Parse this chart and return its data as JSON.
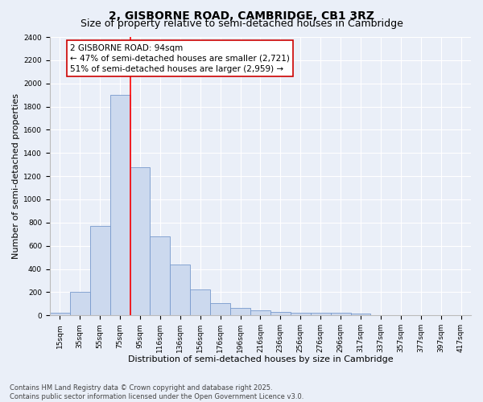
{
  "title": "2, GISBORNE ROAD, CAMBRIDGE, CB1 3RZ",
  "subtitle": "Size of property relative to semi-detached houses in Cambridge",
  "xlabel": "Distribution of semi-detached houses by size in Cambridge",
  "ylabel": "Number of semi-detached properties",
  "bar_labels": [
    "15sqm",
    "35sqm",
    "55sqm",
    "75sqm",
    "95sqm",
    "116sqm",
    "136sqm",
    "156sqm",
    "176sqm",
    "196sqm",
    "216sqm",
    "236sqm",
    "256sqm",
    "276sqm",
    "296sqm",
    "317sqm",
    "337sqm",
    "357sqm",
    "377sqm",
    "397sqm",
    "417sqm"
  ],
  "bar_values": [
    25,
    200,
    770,
    1900,
    1275,
    680,
    435,
    225,
    105,
    65,
    40,
    30,
    25,
    20,
    20,
    15,
    5,
    3,
    2,
    1,
    1
  ],
  "bar_color": "#ccd9ee",
  "bar_edge_color": "#7799cc",
  "vline_x": 3.5,
  "vline_label": "2 GISBORNE ROAD: 94sqm",
  "annotation_line1": "← 47% of semi-detached houses are smaller (2,721)",
  "annotation_line2": "51% of semi-detached houses are larger (2,959) →",
  "annotation_box_color": "#ffffff",
  "annotation_box_edge": "#cc0000",
  "ylim": [
    0,
    2400
  ],
  "yticks": [
    0,
    200,
    400,
    600,
    800,
    1000,
    1200,
    1400,
    1600,
    1800,
    2000,
    2200,
    2400
  ],
  "footnote1": "Contains HM Land Registry data © Crown copyright and database right 2025.",
  "footnote2": "Contains public sector information licensed under the Open Government Licence v3.0.",
  "bg_color": "#eaeff8",
  "plot_bg_color": "#eaeff8",
  "grid_color": "#ffffff",
  "title_fontsize": 10,
  "subtitle_fontsize": 9,
  "axis_label_fontsize": 8,
  "tick_fontsize": 6.5,
  "annotation_fontsize": 7.5,
  "footnote_fontsize": 6
}
